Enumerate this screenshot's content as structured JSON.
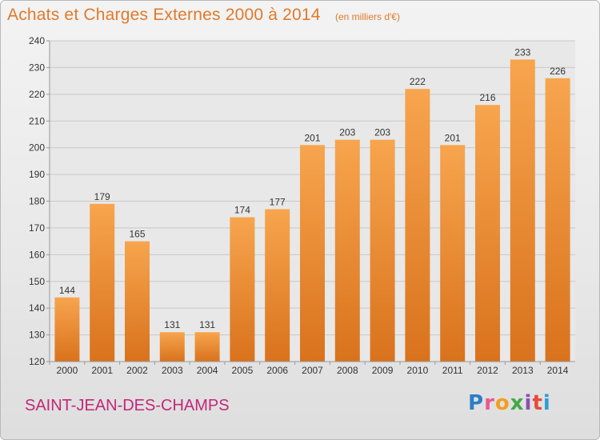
{
  "header": {
    "title": "Achats et Charges Externes 2000 à 2014",
    "subtitle": "(en milliers d'€)"
  },
  "footer": {
    "commune": "SAINT-JEAN-DES-CHAMPS",
    "logo_letters": [
      {
        "char": "P",
        "color": "#2a7fc4"
      },
      {
        "char": "r",
        "color": "#e85a8f"
      },
      {
        "char": "o",
        "color": "#f0a020"
      },
      {
        "char": "x",
        "color": "#44a845"
      },
      {
        "char": "i",
        "color": "#8a4fb0"
      },
      {
        "char": "t",
        "color": "#e84a3a"
      },
      {
        "char": "i",
        "color": "#2a9fd8"
      }
    ]
  },
  "chart_data": {
    "type": "bar",
    "categories": [
      "2000",
      "2001",
      "2002",
      "2003",
      "2004",
      "2005",
      "2006",
      "2007",
      "2008",
      "2009",
      "2010",
      "2011",
      "2012",
      "2013",
      "2014"
    ],
    "values": [
      144,
      179,
      165,
      131,
      131,
      174,
      177,
      201,
      203,
      203,
      222,
      201,
      216,
      233,
      226
    ],
    "ylim": [
      120,
      240
    ],
    "yticks": [
      120,
      130,
      140,
      150,
      160,
      170,
      180,
      190,
      200,
      210,
      220,
      230,
      240
    ],
    "grid": true,
    "bar_color_top": "#f7a54e",
    "bar_color_bottom": "#d9721c",
    "label_color": "#333333"
  }
}
